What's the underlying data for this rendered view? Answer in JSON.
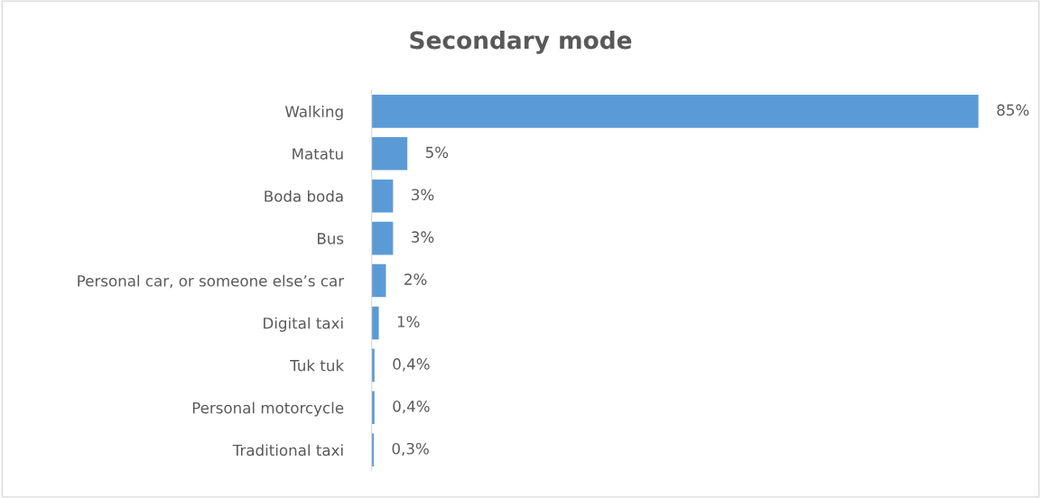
{
  "chart_data": {
    "type": "bar",
    "orientation": "horizontal",
    "title": "Secondary mode",
    "categories": [
      "Walking",
      "Matatu",
      "Boda boda",
      "Bus",
      "Personal car, or someone else’s car",
      "Digital taxi",
      "Tuk tuk",
      "Personal motorcycle",
      "Traditional taxi"
    ],
    "values": [
      85,
      5,
      3,
      3,
      2,
      1,
      0.4,
      0.4,
      0.3
    ],
    "value_labels": [
      "85%",
      "5%",
      "3%",
      "3%",
      "2%",
      "1%",
      "0,4%",
      "0,4%",
      "0,3%"
    ],
    "color": "#5b9bd5",
    "grid": false,
    "legend": false
  }
}
